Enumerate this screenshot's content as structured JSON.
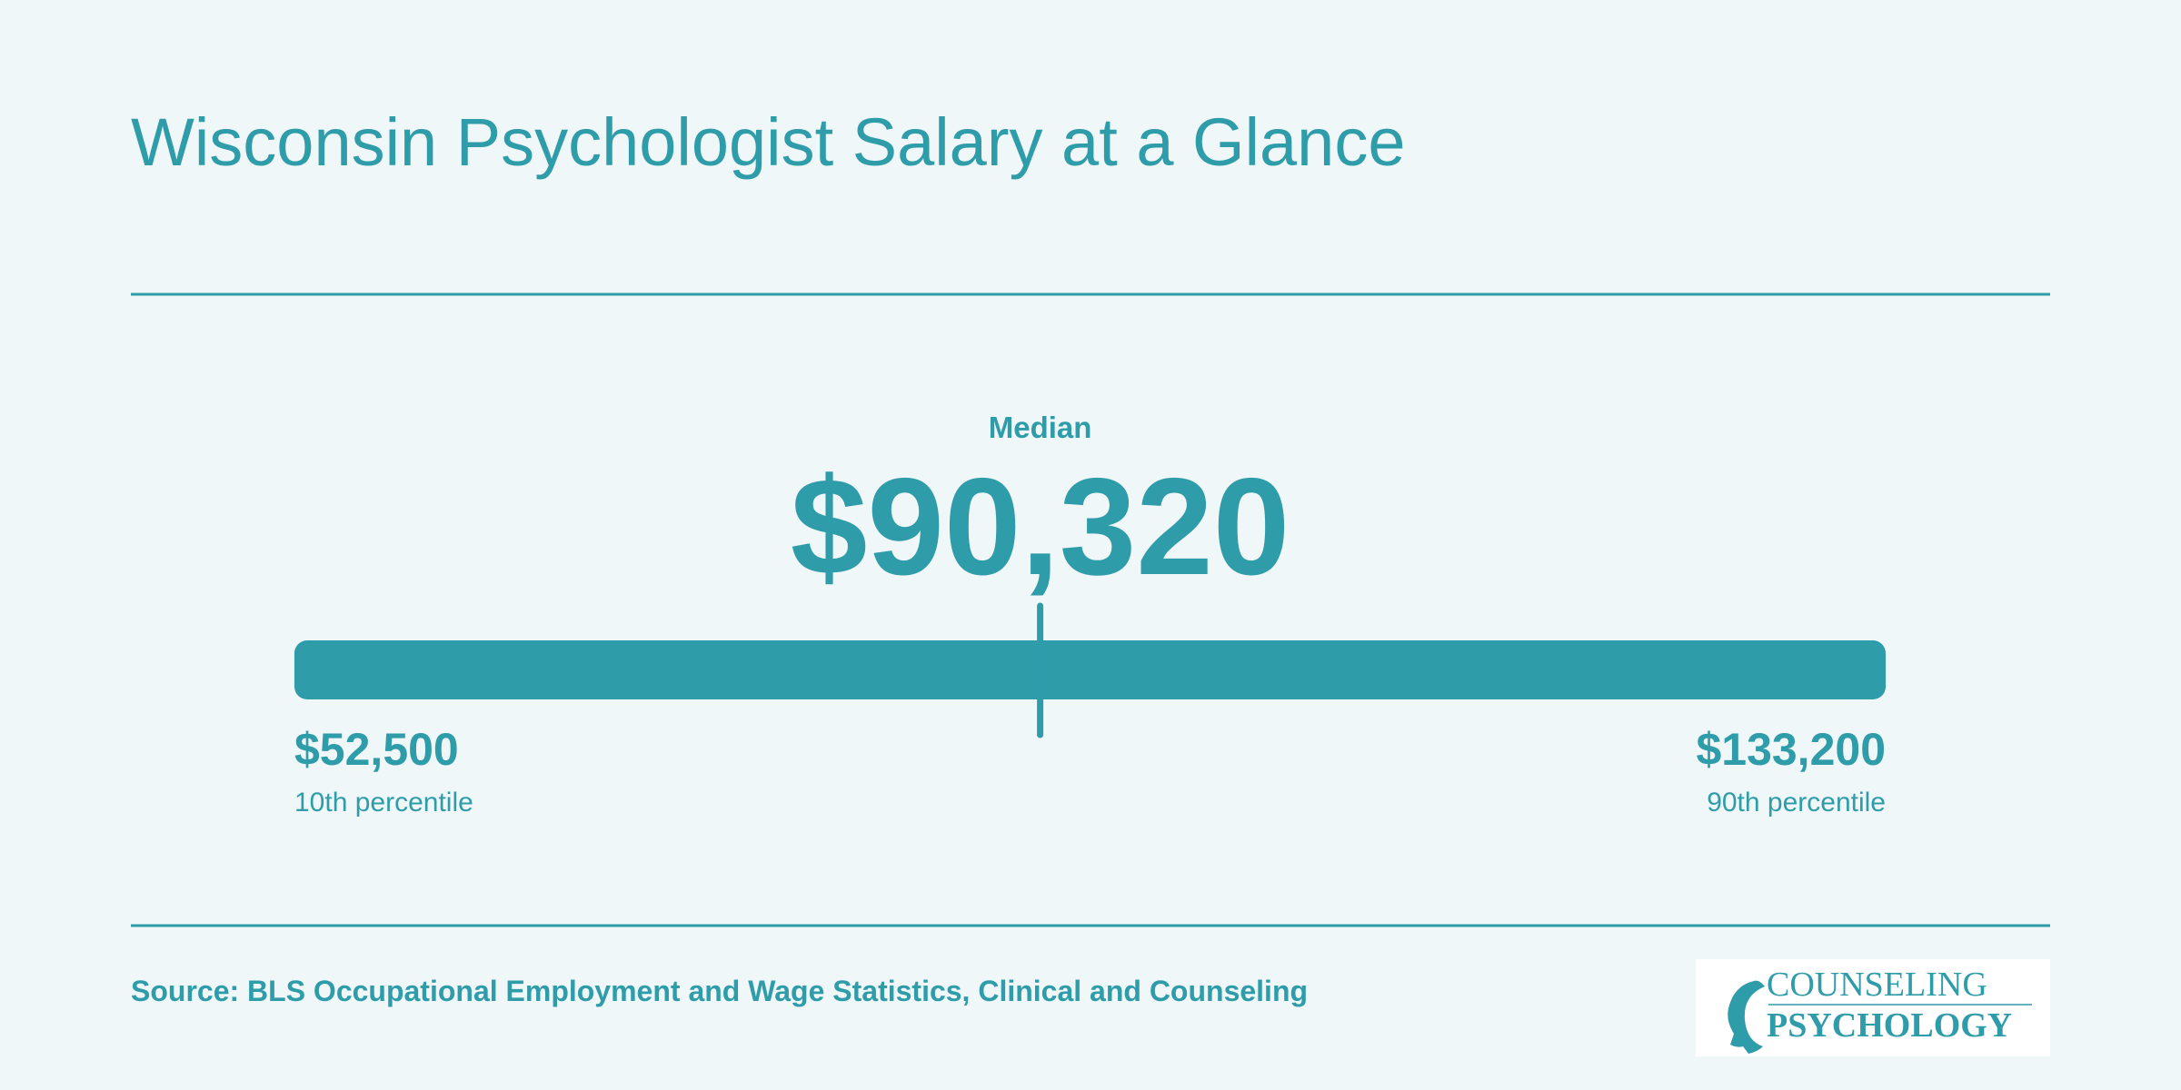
{
  "chart_data": {
    "type": "range",
    "title": "Wisconsin Psychologist Salary at a Glance",
    "categories": [
      "10th percentile",
      "Median",
      "90th percentile"
    ],
    "values": [
      52500,
      90320,
      133200
    ],
    "value_labels": [
      "$52,500",
      "$90,320",
      "$133,200"
    ],
    "color": "#2f9caa",
    "source": "Source: BLS Occupational Employment and Wage Statistics, Clinical and Counseling",
    "logo": [
      "COUNSELING",
      "PSYCHOLOGY"
    ]
  }
}
